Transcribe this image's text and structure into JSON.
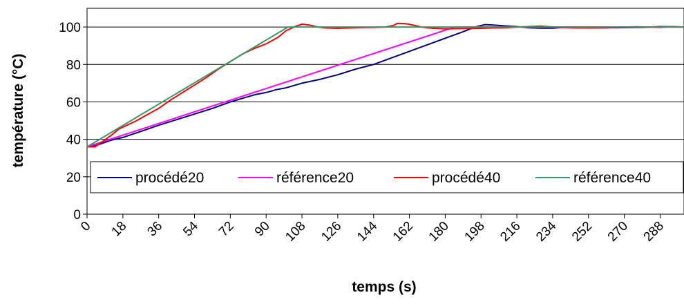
{
  "chart_data": {
    "type": "line",
    "xlabel": "temps (s)",
    "ylabel": "température (°C)",
    "xlim": [
      0,
      300
    ],
    "ylim": [
      0,
      110
    ],
    "x_ticks": [
      0,
      18,
      36,
      54,
      72,
      90,
      108,
      126,
      144,
      162,
      180,
      198,
      216,
      234,
      252,
      270,
      288
    ],
    "y_ticks": [
      0,
      20,
      40,
      60,
      80,
      100
    ],
    "grid": "horizontal",
    "legend_position": "bottom",
    "series": [
      {
        "name": "procédé20",
        "color": "#000080",
        "x": [
          0,
          4,
          8,
          12,
          18,
          25,
          36,
          45,
          54,
          63,
          72,
          80,
          85,
          90,
          95,
          100,
          108,
          117,
          126,
          135,
          144,
          153,
          162,
          171,
          180,
          189,
          195,
          200,
          205,
          210,
          216,
          222,
          228,
          234,
          240,
          246,
          252,
          261,
          270,
          279,
          288,
          294,
          300
        ],
        "y": [
          36,
          36.5,
          38,
          39.5,
          41,
          43.5,
          47.5,
          50.5,
          53.5,
          56.5,
          60,
          62.5,
          64,
          65,
          66.5,
          67.5,
          70,
          72,
          74.5,
          77.5,
          80,
          83.5,
          87,
          90.5,
          94,
          97.5,
          100,
          101.3,
          101,
          100.6,
          100.2,
          99.6,
          99.4,
          99.4,
          99.8,
          99.8,
          99.5,
          99.6,
          99.7,
          99.8,
          100.2,
          100.1,
          100
        ]
      },
      {
        "name": "référence20",
        "color": "#ff00ff",
        "x": [
          0,
          185,
          300
        ],
        "y": [
          36,
          100,
          100
        ]
      },
      {
        "name": "procédé40",
        "color": "#ff0000",
        "x": [
          0,
          4,
          8,
          12,
          16,
          20,
          25,
          30,
          36,
          42,
          48,
          54,
          60,
          66,
          72,
          78,
          84,
          90,
          96,
          100,
          104,
          108,
          112,
          116,
          120,
          126,
          132,
          138,
          144,
          150,
          154,
          156,
          160,
          164,
          168,
          174,
          180,
          186,
          192,
          198,
          204,
          210,
          216,
          222,
          228,
          234,
          240,
          246,
          252,
          258,
          264,
          270,
          276,
          282,
          288,
          294,
          300
        ],
        "y": [
          36,
          36,
          39,
          42,
          45.5,
          47.5,
          50,
          53,
          56.5,
          61,
          65,
          69,
          73,
          77.5,
          81.5,
          85.5,
          88.5,
          91,
          94.5,
          98,
          100,
          101.5,
          101,
          100,
          99.5,
          99.3,
          99.5,
          99.7,
          99.8,
          100,
          100.8,
          102,
          101.8,
          101,
          100,
          99.3,
          99,
          99.1,
          99.2,
          99.3,
          99.5,
          99.6,
          100,
          100.2,
          100.5,
          100,
          99.7,
          99.5,
          99.6,
          99.7,
          99.8,
          100,
          100.1,
          100,
          99.8,
          100.2,
          100
        ]
      },
      {
        "name": "référence40",
        "color": "#339966",
        "x": [
          0,
          101,
          300
        ],
        "y": [
          36,
          100,
          100
        ]
      }
    ]
  }
}
